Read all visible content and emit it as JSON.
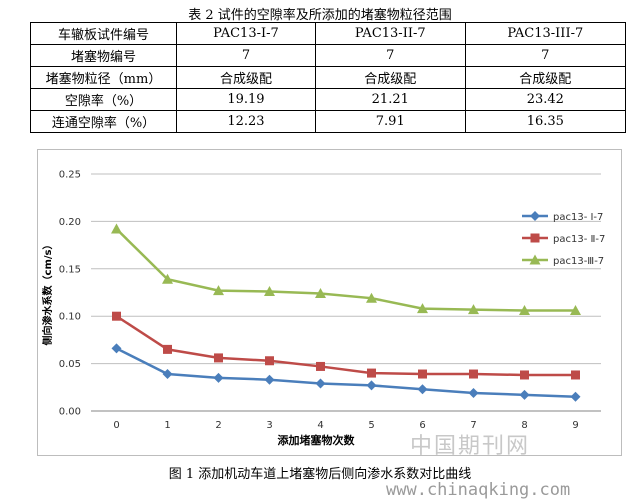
{
  "table_caption": "表 2  试件的空隙率及所添加的堵塞物粒径范围",
  "table": {
    "rows": [
      [
        "车辙板试件编号",
        "PAC13-I-7",
        "PAC13-II-7",
        "PAC13-III-7"
      ],
      [
        "堵塞物编号",
        "7",
        "7",
        "7"
      ],
      [
        "堵塞物粒径（mm）",
        "合成级配",
        "合成级配",
        "合成级配"
      ],
      [
        "空隙率（%）",
        "19.19",
        "21.21",
        "23.42"
      ],
      [
        "连通空隙率（%）",
        "12.23",
        "7.91",
        "16.35"
      ]
    ]
  },
  "figure_caption": "图 1  添加机动车道上堵塞物后侧向渗水系数对比曲线",
  "watermark": {
    "cn": "中国期刊网",
    "url": "www.chinaqking.com"
  },
  "chart_data": {
    "type": "line",
    "xlabel": "添加堵塞物次数",
    "ylabel": "侧向渗水系数（cm/s）",
    "x": [
      0,
      1,
      2,
      3,
      4,
      5,
      6,
      7,
      8,
      9
    ],
    "ylim": [
      0,
      0.25
    ],
    "yticks": [
      "0.00",
      "0.05",
      "0.10",
      "0.15",
      "0.20",
      "0.25"
    ],
    "grid": true,
    "legend_position": "right",
    "series": [
      {
        "name": "pac13- Ⅰ-7",
        "color": "#4a7ebb",
        "marker": "diamond",
        "values": [
          0.066,
          0.039,
          0.035,
          0.033,
          0.029,
          0.027,
          0.023,
          0.019,
          0.017,
          0.015
        ]
      },
      {
        "name": "pac13- Ⅱ-7",
        "color": "#be4b48",
        "marker": "square",
        "values": [
          0.1,
          0.065,
          0.056,
          0.053,
          0.047,
          0.04,
          0.039,
          0.039,
          0.038,
          0.038
        ]
      },
      {
        "name": "pac13-Ⅲ-7",
        "color": "#98b954",
        "marker": "triangle",
        "values": [
          0.192,
          0.139,
          0.127,
          0.126,
          0.124,
          0.119,
          0.108,
          0.107,
          0.106,
          0.106
        ]
      }
    ]
  }
}
